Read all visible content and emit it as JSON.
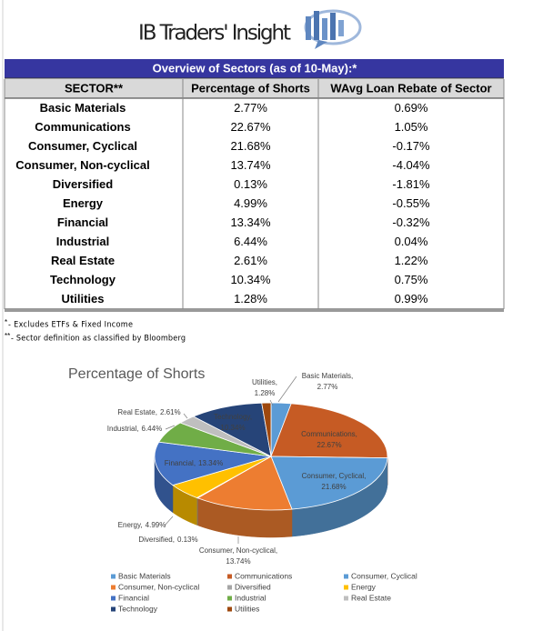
{
  "header": {
    "title": "IB Traders' Insight"
  },
  "table": {
    "title": "Overview of Sectors (as of 10-May):*",
    "columns": [
      "SECTOR**",
      "Percentage of Shorts",
      "WAvg Loan Rebate of Sector"
    ],
    "rows": [
      [
        "Basic Materials",
        "2.77%",
        "0.69%"
      ],
      [
        "Communications",
        "22.67%",
        "1.05%"
      ],
      [
        "Consumer, Cyclical",
        "21.68%",
        "-0.17%"
      ],
      [
        "Consumer, Non-cyclical",
        "13.74%",
        "-4.04%"
      ],
      [
        "Diversified",
        "0.13%",
        "-1.81%"
      ],
      [
        "Energy",
        "4.99%",
        "-0.55%"
      ],
      [
        "Financial",
        "13.34%",
        "-0.32%"
      ],
      [
        "Industrial",
        "6.44%",
        "0.04%"
      ],
      [
        "Real Estate",
        "2.61%",
        "1.22%"
      ],
      [
        "Technology",
        "10.34%",
        "0.75%"
      ],
      [
        "Utilities",
        "1.28%",
        "0.99%"
      ]
    ]
  },
  "notes": [
    {
      "mark": "*",
      "text": "- Excludes ETFs & Fixed Income"
    },
    {
      "mark": "**",
      "text": "- Sector definition as classified by Bloomberg"
    }
  ],
  "chart_data": {
    "type": "pie",
    "title": "Percentage of Shorts",
    "categories": [
      "Basic Materials",
      "Communications",
      "Consumer, Cyclical",
      "Consumer, Non-cyclical",
      "Diversified",
      "Energy",
      "Financial",
      "Industrial",
      "Real Estate",
      "Technology",
      "Utilities"
    ],
    "values": [
      2.77,
      22.67,
      21.68,
      13.74,
      0.13,
      4.99,
      13.34,
      6.44,
      2.61,
      10.34,
      1.28
    ],
    "value_labels": [
      "2.77%",
      "22.67%",
      "21.68%",
      "13.74%",
      "0.13%",
      "4.99%",
      "13.34%",
      "6.44%",
      "2.61%",
      "10.34%",
      "1.28%"
    ],
    "colors": [
      "#5b9bd5",
      "#c65b24",
      "#5b9bd5",
      "#ed7d31",
      "#a5a5a5",
      "#ffc000",
      "#4472c4",
      "#70ad47",
      "#bfbfbf",
      "#264478",
      "#9e480e"
    ]
  }
}
